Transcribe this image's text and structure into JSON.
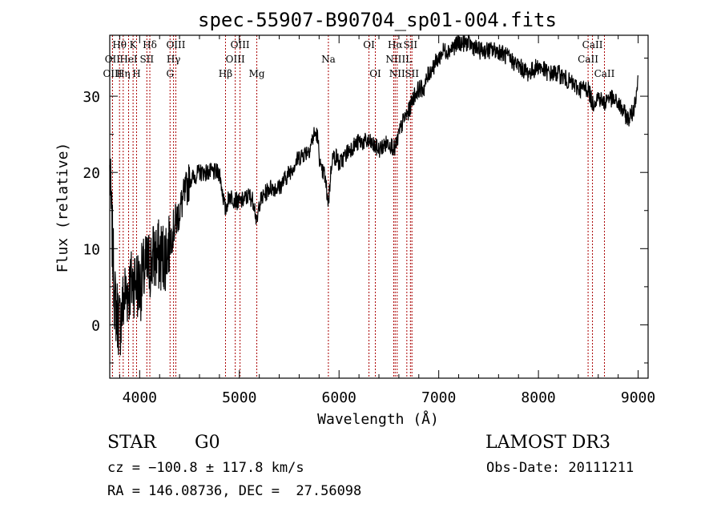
{
  "chart_data": {
    "type": "line",
    "title": "spec-55907-B90704_sp01-004.fits",
    "xlabel": "Wavelength (Å)",
    "ylabel": "Flux (relative)",
    "xlim": [
      3700,
      9100
    ],
    "ylim": [
      -7,
      38
    ],
    "xticks": [
      4000,
      5000,
      6000,
      7000,
      8000,
      9000
    ],
    "yticks": [
      0,
      10,
      20,
      30
    ],
    "color_line": "#000000",
    "color_marker": "#aa0000",
    "spectrum": {
      "x": [
        3700,
        3750,
        3800,
        3850,
        3900,
        3950,
        4000,
        4050,
        4100,
        4150,
        4200,
        4250,
        4300,
        4350,
        4400,
        4450,
        4500,
        4600,
        4700,
        4800,
        4860,
        4900,
        5000,
        5100,
        5150,
        5175,
        5200,
        5300,
        5400,
        5500,
        5600,
        5700,
        5750,
        5780,
        5820,
        5850,
        5893,
        5930,
        5980,
        6000,
        6100,
        6200,
        6300,
        6400,
        6500,
        6563,
        6600,
        6650,
        6700,
        6750,
        6800,
        6850,
        6900,
        6950,
        7000,
        7050,
        7100,
        7200,
        7300,
        7400,
        7500,
        7600,
        7700,
        7800,
        7900,
        8000,
        8100,
        8200,
        8300,
        8400,
        8500,
        8542,
        8600,
        8662,
        8700,
        8800,
        8900,
        8950,
        9000
      ],
      "y": [
        20,
        3,
        0,
        4,
        5,
        6,
        5,
        7,
        8,
        9,
        9,
        9,
        11,
        13,
        15,
        17,
        19,
        20,
        20,
        20,
        15,
        17,
        16,
        17,
        16,
        13,
        16,
        18,
        18,
        20,
        22,
        23,
        25,
        25,
        20,
        20,
        16,
        22,
        22,
        21,
        23,
        24,
        24,
        23,
        24,
        23,
        25,
        27,
        28,
        30,
        31,
        31,
        33,
        34,
        35,
        36,
        36,
        37,
        37,
        36,
        36,
        36,
        35,
        34,
        33,
        34,
        33,
        33,
        32,
        31,
        31,
        29,
        30,
        29,
        30,
        29,
        27,
        28,
        32
      ]
    },
    "line_markers": [
      {
        "label": "Hθ",
        "x": 3798,
        "row": 1
      },
      {
        "label": "OII",
        "x": 3727,
        "row": 2
      },
      {
        "label": "OIII",
        "x": 3728,
        "row": 3
      },
      {
        "label": "K",
        "x": 3934,
        "row": 1
      },
      {
        "label": "HeI",
        "x": 3889,
        "row": 2
      },
      {
        "label": "Hη",
        "x": 3835,
        "row": 3
      },
      {
        "label": "H",
        "x": 3969,
        "row": 3
      },
      {
        "label": "SII",
        "x": 4072,
        "row": 2
      },
      {
        "label": "Hδ",
        "x": 4102,
        "row": 1
      },
      {
        "label": "OIII",
        "x": 4363,
        "row": 1
      },
      {
        "label": "Hγ",
        "x": 4340,
        "row": 2
      },
      {
        "label": "G",
        "x": 4305,
        "row": 3
      },
      {
        "label": "OIII",
        "x": 5007,
        "row": 1
      },
      {
        "label": "OIII",
        "x": 4959,
        "row": 2
      },
      {
        "label": "Hβ",
        "x": 4861,
        "row": 3
      },
      {
        "label": "Mg",
        "x": 5175,
        "row": 3
      },
      {
        "label": "Na",
        "x": 5893,
        "row": 2
      },
      {
        "label": "OI",
        "x": 6300,
        "row": 1
      },
      {
        "label": "OI",
        "x": 6364,
        "row": 3
      },
      {
        "label": "Hα",
        "x": 6563,
        "row": 1
      },
      {
        "label": "SII",
        "x": 6716,
        "row": 1
      },
      {
        "label": "NII",
        "x": 6548,
        "row": 2
      },
      {
        "label": "IL",
        "x": 6680,
        "row": 2
      },
      {
        "label": "NII",
        "x": 6583,
        "row": 3
      },
      {
        "label": "SII",
        "x": 6731,
        "row": 3
      },
      {
        "label": "CaII",
        "x": 8542,
        "row": 1
      },
      {
        "label": "CaII",
        "x": 8498,
        "row": 2
      },
      {
        "label": "CaII",
        "x": 8662,
        "row": 3
      }
    ]
  },
  "footer": {
    "object_class": "STAR",
    "subclass": "G0",
    "survey": "LAMOST DR3",
    "cz": "cz = −100.8 ± 117.8 km/s",
    "obs_date": "Obs-Date: 20111211",
    "coords": "RA = 146.08736, DEC =  27.56098"
  }
}
